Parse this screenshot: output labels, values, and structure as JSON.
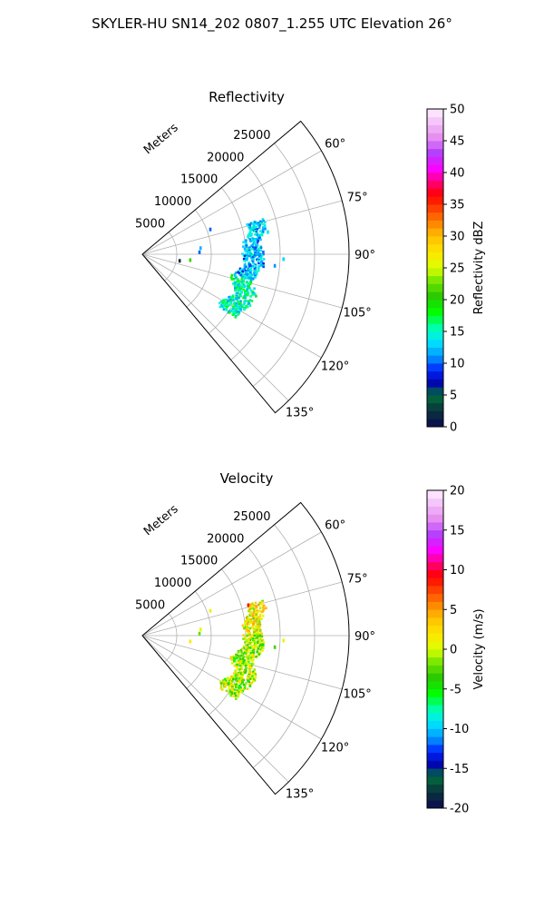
{
  "figure": {
    "title": "SKYLER-HU  SN14_202  0807_1.255 UTC Elevation 26°"
  },
  "chart_data": [
    {
      "type": "polar-sector-scatter",
      "title": "Reflectivity",
      "radial_axis_label": "Meters",
      "radial_ticks": [
        "5000",
        "10000",
        "15000",
        "20000",
        "25000"
      ],
      "radial_range": [
        0,
        30000
      ],
      "angle_range_deg": [
        50,
        140
      ],
      "angle_ticks": [
        "60°",
        "75°",
        "90°",
        "105°",
        "120°",
        "135°"
      ],
      "grid": true,
      "colorbar": {
        "label": "Reflectivity dBZ",
        "range": [
          0,
          50
        ],
        "ticks": [
          "0",
          "5",
          "10",
          "15",
          "20",
          "25",
          "30",
          "35",
          "40",
          "45",
          "50"
        ]
      },
      "bands": [
        {
          "az_start": 74,
          "az_end": 90,
          "r_min": 15500,
          "r_max": 18000,
          "value_min": 9,
          "value_max": 16
        },
        {
          "az_start": 90,
          "az_end": 103,
          "r_min": 14500,
          "r_max": 17200,
          "value_min": 8,
          "value_max": 16
        },
        {
          "az_start": 103,
          "az_end": 124,
          "r_min": 14000,
          "r_max": 17000,
          "value_min": 11,
          "value_max": 19
        }
      ],
      "scatter_points": [
        {
          "az": 70,
          "r": 10500,
          "value": 10
        },
        {
          "az": 84,
          "r": 8500,
          "value": 12
        },
        {
          "az": 88,
          "r": 8300,
          "value": 10
        },
        {
          "az": 97,
          "r": 7000,
          "value": 21
        },
        {
          "az": 100,
          "r": 5500,
          "value": 2
        },
        {
          "az": 95,
          "r": 19300,
          "value": 11
        },
        {
          "az": 92,
          "r": 20500,
          "value": 13
        },
        {
          "az": 80,
          "r": 18500,
          "value": 14
        }
      ]
    },
    {
      "type": "polar-sector-scatter",
      "title": "Velocity",
      "radial_axis_label": "Meters",
      "radial_ticks": [
        "5000",
        "10000",
        "15000",
        "20000",
        "25000"
      ],
      "radial_range": [
        0,
        30000
      ],
      "angle_range_deg": [
        50,
        140
      ],
      "angle_ticks": [
        "60°",
        "75°",
        "90°",
        "105°",
        "120°",
        "135°"
      ],
      "grid": true,
      "colorbar": {
        "label": "Velocity (m/s)",
        "range": [
          -20,
          20
        ],
        "ticks": [
          "-20",
          "-15",
          "-10",
          "-5",
          "0",
          "5",
          "10",
          "15",
          "20"
        ]
      },
      "bands": [
        {
          "az_start": 74,
          "az_end": 90,
          "r_min": 15500,
          "r_max": 18000,
          "value_min": -3,
          "value_max": 5
        },
        {
          "az_start": 90,
          "az_end": 103,
          "r_min": 14500,
          "r_max": 17200,
          "value_min": -5,
          "value_max": 3
        },
        {
          "az_start": 103,
          "az_end": 124,
          "r_min": 14000,
          "r_max": 17000,
          "value_min": -6,
          "value_max": 4
        }
      ],
      "scatter_points": [
        {
          "az": 70,
          "r": 10500,
          "value": 1
        },
        {
          "az": 84,
          "r": 8500,
          "value": 0
        },
        {
          "az": 88,
          "r": 8300,
          "value": -2
        },
        {
          "az": 97,
          "r": 7000,
          "value": 2
        },
        {
          "az": 95,
          "r": 19300,
          "value": -3
        },
        {
          "az": 92,
          "r": 20500,
          "value": 1
        },
        {
          "az": 74,
          "r": 16000,
          "value": 9
        }
      ]
    }
  ]
}
